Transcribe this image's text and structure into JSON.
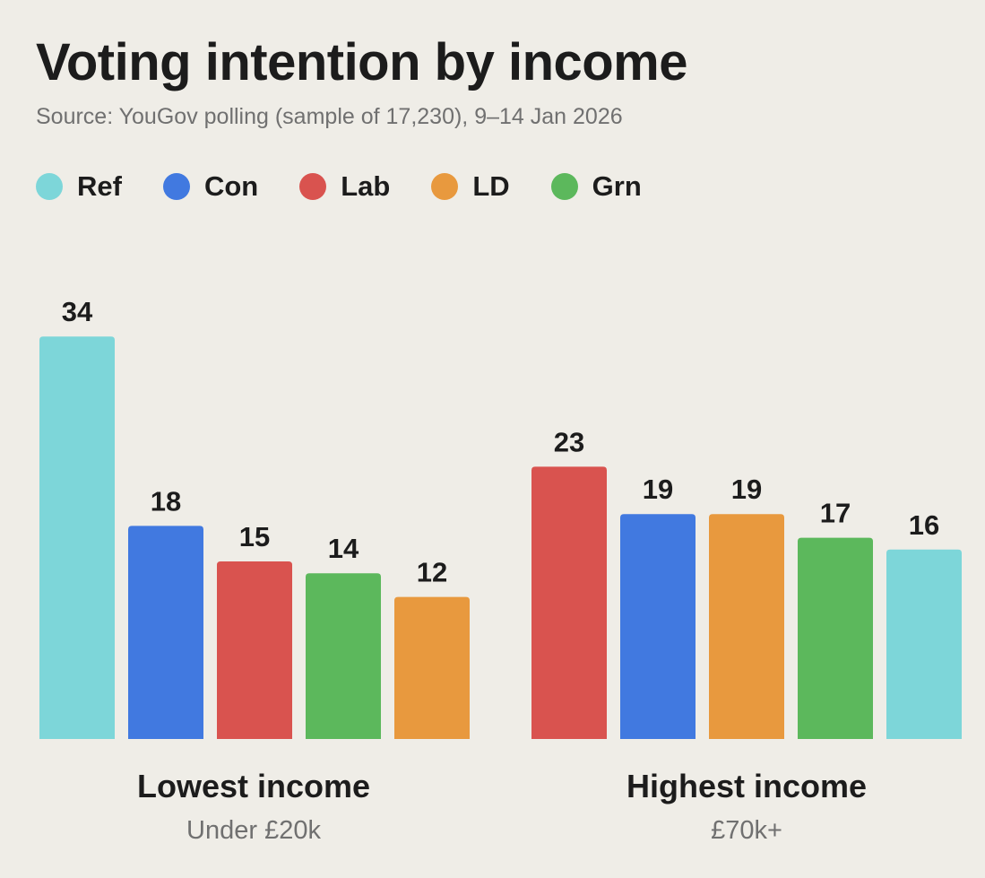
{
  "chart_data": {
    "type": "bar",
    "title": "Voting intention by income",
    "subtitle": "Source: YouGov polling (sample of 17,230), 9–14 Jan 2026",
    "legend": [
      {
        "name": "Ref",
        "color": "#7dd6d9"
      },
      {
        "name": "Con",
        "color": "#4179e0"
      },
      {
        "name": "Lab",
        "color": "#d9534f"
      },
      {
        "name": "LD",
        "color": "#e8993e"
      },
      {
        "name": "Grn",
        "color": "#5cb85c"
      }
    ],
    "groups": [
      {
        "label": "Lowest income",
        "sublabel": "Under £20k",
        "bars": [
          {
            "party": "Ref",
            "value": 34
          },
          {
            "party": "Con",
            "value": 18
          },
          {
            "party": "Lab",
            "value": 15
          },
          {
            "party": "Grn",
            "value": 14
          },
          {
            "party": "LD",
            "value": 12
          }
        ]
      },
      {
        "label": "Highest income",
        "sublabel": "£70k+",
        "bars": [
          {
            "party": "Lab",
            "value": 23
          },
          {
            "party": "Con",
            "value": 19
          },
          {
            "party": "LD",
            "value": 19
          },
          {
            "party": "Grn",
            "value": 17
          },
          {
            "party": "Ref",
            "value": 16
          }
        ]
      }
    ],
    "ylim": [
      0,
      34
    ],
    "grid": false,
    "legend_position": "top-left"
  }
}
